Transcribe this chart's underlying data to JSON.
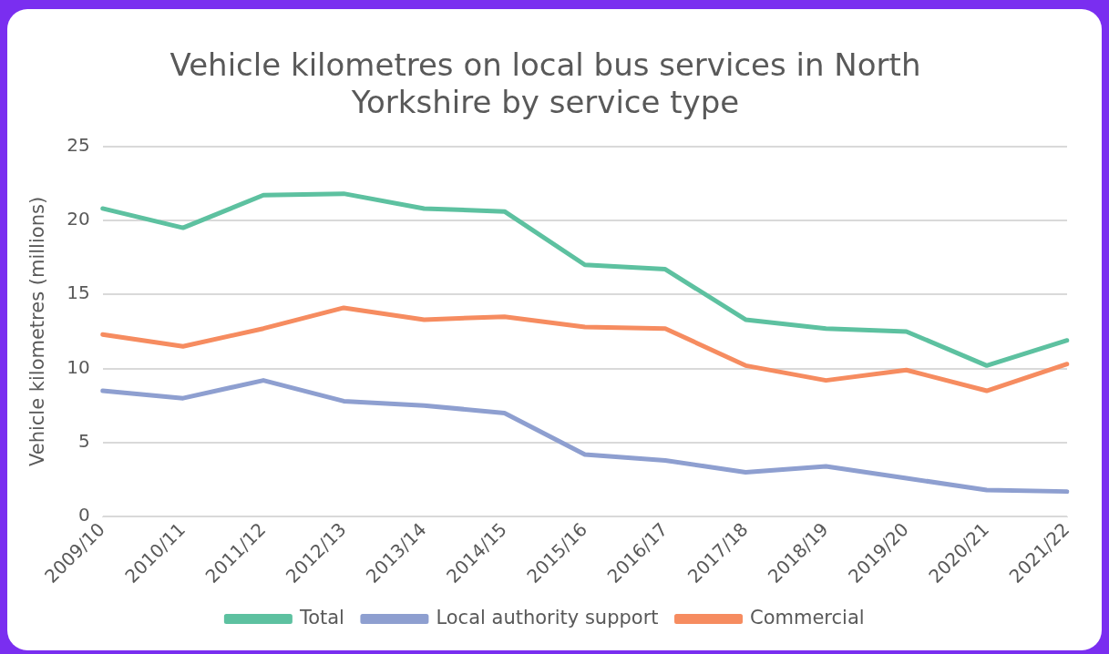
{
  "chart_data": {
    "type": "line",
    "title": "Vehicle kilometres on local bus services in North Yorkshire by service type",
    "ylabel": "Vehicle kilometres (millions)",
    "categories": [
      "2009/10",
      "2010/11",
      "2011/12",
      "2012/13",
      "2013/14",
      "2014/15",
      "2015/16",
      "2016/17",
      "2017/18",
      "2018/19",
      "2019/20",
      "2020/21",
      "2021/22"
    ],
    "series": [
      {
        "name": "Total",
        "color": "#5dc1a0",
        "values": [
          20.8,
          19.5,
          21.7,
          21.8,
          20.8,
          20.6,
          17.0,
          16.7,
          13.3,
          12.7,
          12.5,
          10.2,
          11.9
        ]
      },
      {
        "name": "Local authority support",
        "color": "#8e9fd0",
        "values": [
          8.5,
          8.0,
          9.2,
          7.8,
          7.5,
          7.0,
          4.2,
          3.8,
          3.0,
          3.4,
          2.6,
          1.8,
          1.7
        ]
      },
      {
        "name": "Commercial",
        "color": "#f68c60",
        "values": [
          12.3,
          11.5,
          12.7,
          14.1,
          13.3,
          13.5,
          12.8,
          12.7,
          10.2,
          9.2,
          9.9,
          8.5,
          10.3
        ]
      }
    ],
    "ylim": [
      0,
      25
    ],
    "yticks": [
      0,
      5,
      10,
      15,
      20,
      25
    ],
    "grid": "y",
    "legend": "bottom",
    "marker": "none",
    "line_style": "solid"
  }
}
